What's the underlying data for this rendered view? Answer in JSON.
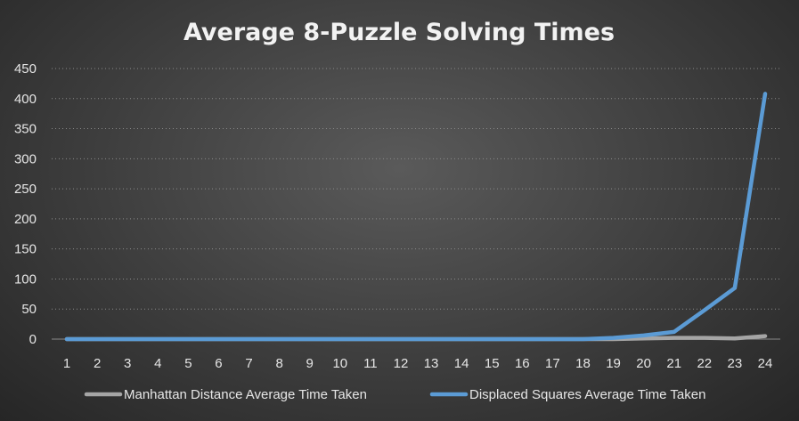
{
  "chart_data": {
    "type": "line",
    "title": "Average 8-Puzzle Solving Times",
    "xlabel": "",
    "ylabel": "",
    "categories": [
      "1",
      "2",
      "3",
      "4",
      "5",
      "6",
      "7",
      "8",
      "9",
      "10",
      "11",
      "12",
      "13",
      "14",
      "15",
      "16",
      "17",
      "18",
      "19",
      "20",
      "21",
      "22",
      "23",
      "24"
    ],
    "ylim": [
      0,
      450
    ],
    "yticks": [
      0,
      50,
      100,
      150,
      200,
      250,
      300,
      350,
      400,
      450
    ],
    "grid": true,
    "legend_position": "bottom",
    "series": [
      {
        "name": "Manhattan Distance Average Time Taken",
        "color": "#a5a5a5",
        "values": [
          0,
          0,
          0,
          0,
          0,
          0,
          0,
          0,
          0,
          0,
          0,
          0,
          0,
          0,
          0,
          0,
          0,
          0,
          0,
          1,
          2,
          2,
          1,
          5
        ]
      },
      {
        "name": "Displaced Squares Average Time Taken",
        "color": "#5b9bd5",
        "values": [
          0,
          0,
          0,
          0,
          0,
          0,
          0,
          0,
          0,
          0,
          0,
          0,
          0,
          0,
          0,
          0,
          0,
          0,
          2,
          6,
          12,
          48,
          85,
          408
        ]
      }
    ]
  }
}
